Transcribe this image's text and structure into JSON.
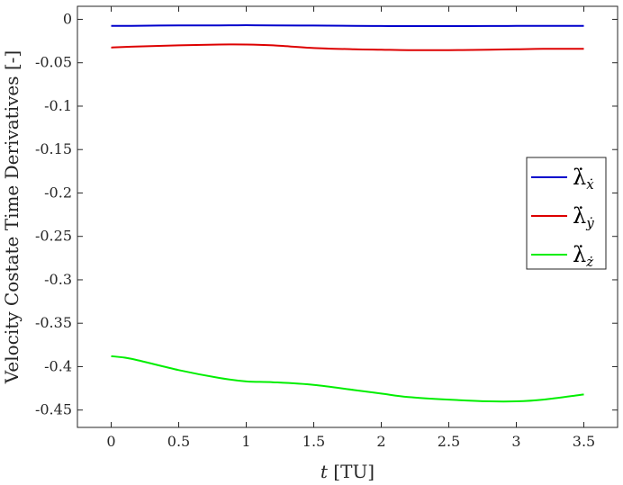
{
  "chart_data": {
    "type": "line",
    "xlabel": "t [TU]",
    "xlabel_var": "t",
    "xlabel_unit": "[TU]",
    "ylabel": "Velocity Costate Time Derivatives [-]",
    "xlim": [
      -0.25,
      3.75
    ],
    "ylim": [
      -0.47,
      0.015
    ],
    "x_ticks": [
      0,
      0.5,
      1,
      1.5,
      2,
      2.5,
      3,
      3.5
    ],
    "x_tick_labels": [
      "0",
      "0.5",
      "1",
      "1.5",
      "2",
      "2.5",
      "3",
      "3.5"
    ],
    "y_ticks": [
      0,
      -0.05,
      -0.1,
      -0.15,
      -0.2,
      -0.25,
      -0.3,
      -0.35,
      -0.4,
      -0.45
    ],
    "y_tick_labels": [
      "0",
      "-0.05",
      "-0.1",
      "-0.15",
      "-0.2",
      "-0.25",
      "-0.3",
      "-0.35",
      "-0.4",
      "-0.45"
    ],
    "grid": false,
    "legend_position": "right",
    "x": [
      0,
      0.15,
      0.5,
      0.8,
      1.0,
      1.2,
      1.5,
      1.8,
      2.0,
      2.2,
      2.5,
      2.8,
      3.0,
      3.2,
      3.5
    ],
    "series": [
      {
        "name": "λ̇ẋ",
        "legend_symbol": "λ̇",
        "legend_sub": "ẋ",
        "color": "#0000cc",
        "values": [
          -0.0075,
          -0.0075,
          -0.007,
          -0.007,
          -0.0068,
          -0.007,
          -0.0072,
          -0.0075,
          -0.0077,
          -0.0078,
          -0.0078,
          -0.0077,
          -0.0076,
          -0.0076,
          -0.0076
        ]
      },
      {
        "name": "λ̇ẏ",
        "legend_symbol": "λ̇",
        "legend_sub": "ẏ",
        "color": "#dd0000",
        "values": [
          -0.0325,
          -0.0315,
          -0.03,
          -0.029,
          -0.029,
          -0.03,
          -0.033,
          -0.0345,
          -0.035,
          -0.0355,
          -0.0355,
          -0.035,
          -0.0345,
          -0.034,
          -0.034
        ]
      },
      {
        "name": "λ̇ż",
        "legend_symbol": "λ̇",
        "legend_sub": "ż",
        "color": "#00ee00",
        "values": [
          -0.388,
          -0.391,
          -0.404,
          -0.413,
          -0.417,
          -0.418,
          -0.421,
          -0.427,
          -0.431,
          -0.435,
          -0.438,
          -0.44,
          -0.44,
          -0.438,
          -0.432
        ]
      }
    ]
  }
}
